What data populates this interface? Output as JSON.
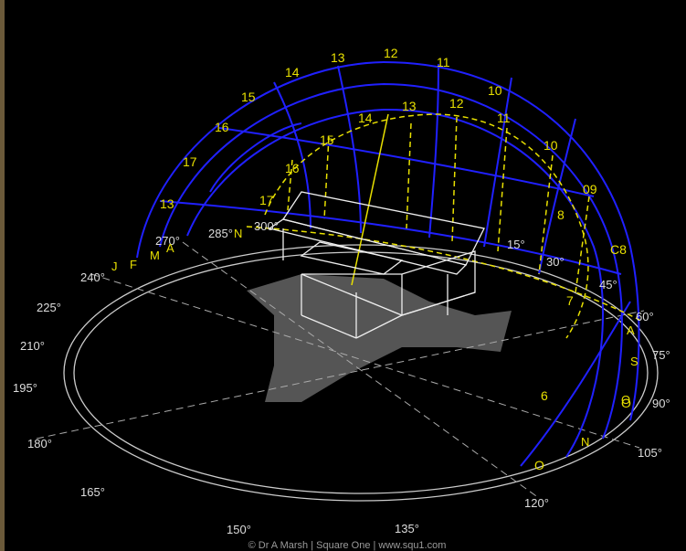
{
  "hour_labels": [
    "13",
    "12",
    "11",
    "10",
    "14",
    "15",
    "16",
    "17",
    "13",
    "14",
    "13",
    "12",
    "11",
    "10",
    "15",
    "16",
    "17",
    "09",
    "8",
    "C8",
    "7",
    "6",
    "O",
    "O"
  ],
  "azimuth_labels": [
    "240°",
    "225°",
    "210°",
    "195°",
    "180°",
    "165°",
    "150°",
    "135°",
    "120°",
    "105°",
    "90°",
    "75°",
    "60°",
    "45°",
    "30°",
    "15°",
    "270°",
    "285°",
    "300°"
  ],
  "month_labels": [
    "J",
    "F",
    "M",
    "A",
    "N",
    "A",
    "S",
    "O",
    "N"
  ],
  "credit": "© Dr A Marsh | Square One | www.squ1.com"
}
